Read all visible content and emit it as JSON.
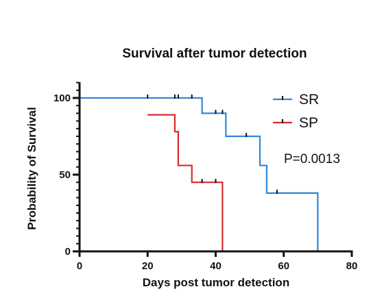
{
  "chart_data": {
    "type": "line",
    "subtype": "kaplan-meier-survival",
    "title": "Survival after tumor detection",
    "xlabel": "Days post tumor detection",
    "ylabel": "Probability of Survival",
    "xlim": [
      0,
      80
    ],
    "ylim": [
      0,
      100
    ],
    "x_ticks": [
      0,
      20,
      40,
      60,
      80
    ],
    "y_ticks": [
      0,
      50,
      100
    ],
    "grid": false,
    "legend_position": "top-right",
    "annotation": "P=0.0013",
    "series": [
      {
        "name": "SR",
        "color": "#2f86d8",
        "steps": [
          {
            "x": 0,
            "y": 100
          },
          {
            "x": 36,
            "y": 90
          },
          {
            "x": 43,
            "y": 75
          },
          {
            "x": 53,
            "y": 56
          },
          {
            "x": 55,
            "y": 38
          },
          {
            "x": 70,
            "y": 0
          }
        ],
        "censored": [
          {
            "x": 20,
            "y": 100
          },
          {
            "x": 28,
            "y": 100
          },
          {
            "x": 29,
            "y": 100
          },
          {
            "x": 33,
            "y": 100
          },
          {
            "x": 40,
            "y": 90
          },
          {
            "x": 42,
            "y": 90
          },
          {
            "x": 49,
            "y": 75
          },
          {
            "x": 58,
            "y": 38
          }
        ]
      },
      {
        "name": "SP",
        "color": "#d92a2a",
        "steps": [
          {
            "x": 20,
            "y": 89
          },
          {
            "x": 28,
            "y": 78
          },
          {
            "x": 29,
            "y": 56
          },
          {
            "x": 33,
            "y": 45
          },
          {
            "x": 42,
            "y": 0
          }
        ],
        "censored": [
          {
            "x": 36,
            "y": 45
          },
          {
            "x": 40,
            "y": 45
          }
        ]
      }
    ]
  }
}
